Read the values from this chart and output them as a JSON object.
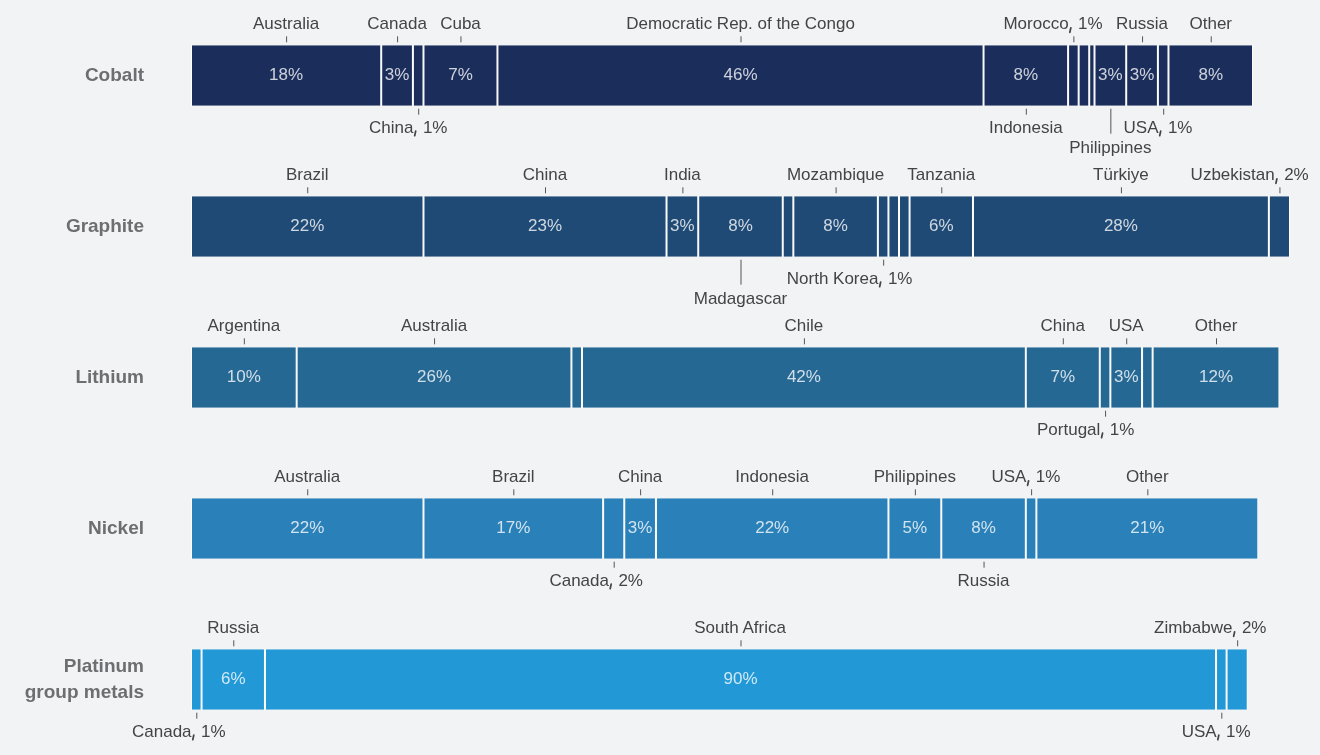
{
  "chart_data": {
    "type": "bar",
    "orientation": "horizontal",
    "stacked": true,
    "legend": false,
    "categories": [
      "Cobalt",
      "Graphite",
      "Lithium",
      "Nickel",
      "Platinum group metals"
    ],
    "series": [
      {
        "name": "Argentina",
        "colors": [
          "#1b2d5a",
          "#1f4a75",
          "#256894",
          "#2a80b8",
          "#2299d6"
        ],
        "values": [
          null,
          null,
          10,
          null,
          null
        ],
        "value_labels": [
          null,
          null,
          "10%",
          null,
          null
        ]
      },
      {
        "name": "Australia",
        "colors": [
          "#1b2d5a",
          "#1f4a75",
          "#256894",
          "#2a80b8",
          "#2299d6"
        ],
        "values": [
          18,
          null,
          26,
          22,
          null
        ],
        "value_labels": [
          "18%",
          null,
          "26%",
          "22%",
          null
        ]
      },
      {
        "name": "Brazil",
        "colors": [
          "#1b2d5a",
          "#1f4a75",
          "#256894",
          "#2a80b8",
          "#2299d6"
        ],
        "values": [
          null,
          22,
          null,
          17,
          null
        ],
        "value_labels": [
          null,
          "22%",
          null,
          "17%",
          null
        ]
      },
      {
        "name": "Canada",
        "colors": [
          "#1b2d5a",
          "#1f4a75",
          "#256894",
          "#2a80b8",
          "#2299d6"
        ],
        "values": [
          3,
          null,
          null,
          2,
          1
        ],
        "value_labels": [
          "3%",
          null,
          null,
          "2%",
          "1%"
        ]
      },
      {
        "colors": [
          "#1b2d5a",
          "#1f4a75",
          "#256894",
          "#2a80b8",
          "#2299d6"
        ],
        "values": [
          null,
          null,
          1,
          null,
          null
        ]
      },
      {
        "name": "Chile",
        "colors": [
          "#1b2d5a",
          "#1f4a75",
          "#256894",
          "#2a80b8",
          "#2299d6"
        ],
        "values": [
          null,
          null,
          42,
          null,
          null
        ],
        "value_labels": [
          null,
          null,
          "42%",
          null,
          null
        ]
      },
      {
        "name": "China",
        "colors": [
          "#1b2d5a",
          "#1f4a75",
          "#256894",
          "#2a80b8",
          "#2299d6"
        ],
        "values": [
          1,
          23,
          7,
          3,
          null
        ],
        "value_labels": [
          "1%",
          "23%",
          "7%",
          "3%",
          null
        ]
      },
      {
        "name": "Cuba",
        "colors": [
          "#1b2d5a",
          "#1f4a75",
          "#256894",
          "#2a80b8",
          "#2299d6"
        ],
        "values": [
          7,
          null,
          null,
          null,
          null
        ],
        "value_labels": [
          "7%",
          null,
          null,
          null,
          null
        ]
      },
      {
        "name": "Democratic Rep. of the Congo",
        "colors": [
          "#1b2d5a",
          "#1f4a75",
          "#256894",
          "#2a80b8",
          "#2299d6"
        ],
        "values": [
          46,
          null,
          null,
          null,
          null
        ],
        "value_labels": [
          "46%",
          null,
          null,
          null,
          null
        ]
      },
      {
        "name": "India",
        "colors": [
          "#1b2d5a",
          "#1f4a75",
          "#256894",
          "#2a80b8",
          "#2299d6"
        ],
        "values": [
          null,
          3,
          null,
          null,
          null
        ],
        "value_labels": [
          null,
          "3%",
          null,
          null,
          null
        ]
      },
      {
        "name": "Indonesia",
        "colors": [
          "#1b2d5a",
          "#1f4a75",
          "#256894",
          "#2a80b8",
          "#2299d6"
        ],
        "values": [
          8,
          null,
          null,
          22,
          null
        ],
        "value_labels": [
          "8%",
          null,
          null,
          "22%",
          null
        ]
      },
      {
        "name": "Madagascar",
        "colors": [
          "#1b2d5a",
          "#1f4a75",
          "#256894",
          "#2a80b8",
          "#2299d6"
        ],
        "values": [
          null,
          8,
          null,
          null,
          null
        ],
        "value_labels": [
          null,
          "8%",
          null,
          null,
          null
        ]
      },
      {
        "name": "Morocco",
        "colors": [
          "#1b2d5a",
          "#1f4a75",
          "#256894",
          "#2a80b8",
          "#2299d6"
        ],
        "values": [
          1,
          null,
          null,
          null,
          null
        ],
        "value_labels": [
          "1%",
          null,
          null,
          null,
          null
        ]
      },
      {
        "colors": [
          "#1b2d5a",
          "#1f4a75",
          "#256894",
          "#2a80b8",
          "#2299d6"
        ],
        "values": [
          1,
          1,
          null,
          null,
          null
        ]
      },
      {
        "name": "Mozambique",
        "colors": [
          "#1b2d5a",
          "#1f4a75",
          "#256894",
          "#2a80b8",
          "#2299d6"
        ],
        "values": [
          null,
          8,
          null,
          null,
          null
        ],
        "value_labels": [
          null,
          "8%",
          null,
          null,
          null
        ]
      },
      {
        "name": "North Korea",
        "colors": [
          "#1b2d5a",
          "#1f4a75",
          "#256894",
          "#2a80b8",
          "#2299d6"
        ],
        "values": [
          null,
          1,
          null,
          null,
          null
        ],
        "value_labels": [
          null,
          "1%",
          null,
          null,
          null
        ]
      },
      {
        "colors": [
          "#1b2d5a",
          "#1f4a75",
          "#256894",
          "#2a80b8",
          "#2299d6"
        ],
        "values": [
          0.5,
          1,
          null,
          null,
          null
        ]
      },
      {
        "colors": [
          "#1b2d5a",
          "#1f4a75",
          "#256894",
          "#2a80b8",
          "#2299d6"
        ],
        "values": [
          null,
          1,
          null,
          null,
          null
        ]
      },
      {
        "name": "Philippines",
        "colors": [
          "#1b2d5a",
          "#1f4a75",
          "#256894",
          "#2a80b8",
          "#2299d6"
        ],
        "values": [
          3,
          null,
          null,
          5,
          null
        ],
        "value_labels": [
          "3%",
          null,
          null,
          "5%",
          null
        ]
      },
      {
        "name": "Portugal",
        "colors": [
          "#1b2d5a",
          "#1f4a75",
          "#256894",
          "#2a80b8",
          "#2299d6"
        ],
        "values": [
          null,
          null,
          1,
          null,
          null
        ],
        "value_labels": [
          null,
          null,
          "1%",
          null,
          null
        ]
      },
      {
        "name": "Russia",
        "colors": [
          "#1b2d5a",
          "#1f4a75",
          "#256894",
          "#2a80b8",
          "#2299d6"
        ],
        "values": [
          3,
          null,
          null,
          8,
          6
        ],
        "value_labels": [
          "3%",
          null,
          null,
          "8%",
          "6%"
        ]
      },
      {
        "name": "South Africa",
        "colors": [
          "#1b2d5a",
          "#1f4a75",
          "#256894",
          "#2a80b8",
          "#2299d6"
        ],
        "values": [
          null,
          null,
          null,
          null,
          90
        ],
        "value_labels": [
          null,
          null,
          null,
          null,
          "90%"
        ]
      },
      {
        "name": "Tanzania",
        "colors": [
          "#1b2d5a",
          "#1f4a75",
          "#256894",
          "#2a80b8",
          "#2299d6"
        ],
        "values": [
          null,
          6,
          null,
          null,
          null
        ],
        "value_labels": [
          null,
          "6%",
          null,
          null,
          null
        ]
      },
      {
        "name": "Türkiye",
        "colors": [
          "#1b2d5a",
          "#1f4a75",
          "#256894",
          "#2a80b8",
          "#2299d6"
        ],
        "values": [
          null,
          28,
          null,
          null,
          null
        ],
        "value_labels": [
          null,
          "28%",
          null,
          null,
          null
        ]
      },
      {
        "name": "USA",
        "colors": [
          "#1b2d5a",
          "#1f4a75",
          "#256894",
          "#2a80b8",
          "#2299d6"
        ],
        "values": [
          1,
          null,
          3,
          1,
          1
        ],
        "value_labels": [
          "1%",
          null,
          "3%",
          "1%",
          "1%"
        ]
      },
      {
        "name": "Uzbekistan",
        "colors": [
          "#1b2d5a",
          "#1f4a75",
          "#256894",
          "#2a80b8",
          "#2299d6"
        ],
        "values": [
          null,
          2,
          null,
          null,
          null
        ],
        "value_labels": [
          null,
          "2%",
          null,
          null,
          null
        ]
      },
      {
        "name": "Zimbabwe",
        "colors": [
          "#1b2d5a",
          "#1f4a75",
          "#256894",
          "#2a80b8",
          "#2299d6"
        ],
        "values": [
          null,
          null,
          null,
          null,
          2
        ],
        "value_labels": [
          null,
          null,
          null,
          null,
          "2%"
        ]
      },
      {
        "colors": [
          "#1b2d5a",
          "#1f4a75",
          "#256894",
          "#2a80b8",
          "#2299d6"
        ],
        "values": [
          null,
          null,
          1,
          null,
          null
        ]
      },
      {
        "name": "Other",
        "colors": [
          "#1b2d5a",
          "#1f4a75",
          "#256894",
          "#2a80b8",
          "#2299d6"
        ],
        "values": [
          8,
          null,
          12,
          21,
          null
        ],
        "value_labels": [
          "8%",
          null,
          "12%",
          "21%",
          null
        ]
      }
    ]
  }
}
